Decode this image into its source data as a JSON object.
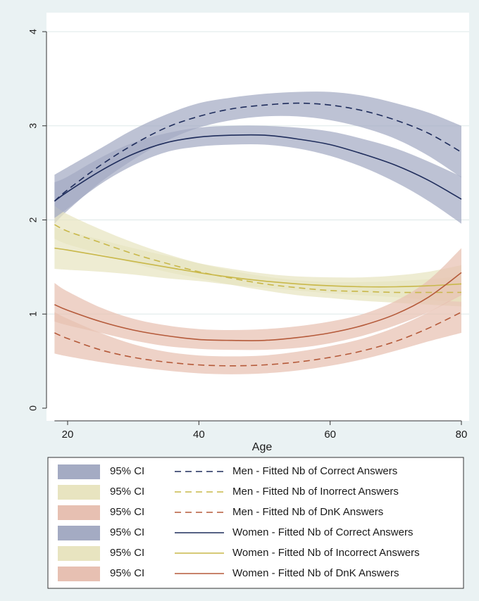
{
  "chart_data": {
    "type": "line",
    "xlabel": "Age",
    "ylabel": "",
    "xlim": [
      18,
      80
    ],
    "ylim": [
      0,
      4
    ],
    "xticks": [
      "20",
      "40",
      "60",
      "80"
    ],
    "yticks": [
      "0",
      "1",
      "2",
      "3",
      "4"
    ],
    "grid": true,
    "legend_position": "bottom",
    "x": [
      18,
      20,
      25,
      30,
      35,
      40,
      45,
      50,
      55,
      60,
      65,
      70,
      75,
      80
    ],
    "series": [
      {
        "name": "Men - Fitted Nb of Correct Answers",
        "group": "Men",
        "style": "dashed",
        "color": "#1f2d5c",
        "ci_color": "#a4abc3",
        "values": [
          2.2,
          2.32,
          2.58,
          2.8,
          2.98,
          3.1,
          3.18,
          3.22,
          3.24,
          3.22,
          3.16,
          3.06,
          2.92,
          2.72
        ],
        "ci_lower": [
          1.96,
          2.1,
          2.4,
          2.64,
          2.84,
          2.98,
          3.06,
          3.1,
          3.1,
          3.06,
          2.98,
          2.86,
          2.68,
          2.45
        ],
        "ci_upper": [
          2.48,
          2.56,
          2.76,
          2.96,
          3.12,
          3.24,
          3.3,
          3.34,
          3.36,
          3.36,
          3.32,
          3.24,
          3.14,
          3.0
        ]
      },
      {
        "name": "Men - Fitted Nb of Inorrect Answers",
        "group": "Men",
        "style": "dashed",
        "color": "#c9b84a",
        "ci_color": "#e8e4c0",
        "values": [
          1.95,
          1.88,
          1.76,
          1.64,
          1.54,
          1.45,
          1.38,
          1.32,
          1.28,
          1.25,
          1.24,
          1.23,
          1.23,
          1.23
        ],
        "ci_lower": [
          1.8,
          1.74,
          1.64,
          1.54,
          1.45,
          1.38,
          1.31,
          1.25,
          1.2,
          1.17,
          1.14,
          1.12,
          1.1,
          1.08
        ],
        "ci_upper": [
          2.15,
          2.06,
          1.9,
          1.76,
          1.64,
          1.54,
          1.46,
          1.4,
          1.36,
          1.34,
          1.34,
          1.35,
          1.37,
          1.4
        ]
      },
      {
        "name": "Men - Fitted Nb of DnK Answers",
        "group": "Men",
        "style": "dashed",
        "color": "#b55a3a",
        "ci_color": "#e7c0b2",
        "values": [
          0.8,
          0.74,
          0.62,
          0.54,
          0.49,
          0.46,
          0.45,
          0.46,
          0.49,
          0.54,
          0.61,
          0.71,
          0.85,
          1.02
        ],
        "ci_lower": [
          0.58,
          0.55,
          0.49,
          0.44,
          0.4,
          0.37,
          0.36,
          0.37,
          0.4,
          0.45,
          0.52,
          0.61,
          0.71,
          0.8
        ],
        "ci_upper": [
          1.02,
          0.95,
          0.8,
          0.68,
          0.6,
          0.56,
          0.55,
          0.56,
          0.6,
          0.66,
          0.74,
          0.86,
          1.02,
          1.22
        ]
      },
      {
        "name": "Women - Fitted Nb of Correct Answers",
        "group": "Women",
        "style": "solid",
        "color": "#1f2d5c",
        "ci_color": "#a4abc3",
        "values": [
          2.2,
          2.3,
          2.52,
          2.7,
          2.82,
          2.88,
          2.9,
          2.9,
          2.86,
          2.8,
          2.7,
          2.58,
          2.42,
          2.22
        ],
        "ci_lower": [
          2.02,
          2.12,
          2.38,
          2.58,
          2.72,
          2.78,
          2.8,
          2.8,
          2.76,
          2.68,
          2.56,
          2.4,
          2.2,
          1.96
        ],
        "ci_upper": [
          2.4,
          2.46,
          2.66,
          2.82,
          2.92,
          2.98,
          3.0,
          3.0,
          2.98,
          2.94,
          2.86,
          2.76,
          2.62,
          2.46
        ]
      },
      {
        "name": "Women - Fitted Nb of Incorrect Answers",
        "group": "Women",
        "style": "solid",
        "color": "#c9b84a",
        "ci_color": "#e8e4c0",
        "values": [
          1.7,
          1.68,
          1.62,
          1.56,
          1.5,
          1.44,
          1.39,
          1.35,
          1.32,
          1.3,
          1.29,
          1.29,
          1.3,
          1.32
        ],
        "ci_lower": [
          1.48,
          1.47,
          1.45,
          1.42,
          1.38,
          1.35,
          1.31,
          1.28,
          1.25,
          1.22,
          1.2,
          1.18,
          1.15,
          1.13
        ],
        "ci_upper": [
          1.92,
          1.88,
          1.79,
          1.7,
          1.62,
          1.54,
          1.48,
          1.43,
          1.4,
          1.39,
          1.39,
          1.41,
          1.45,
          1.52
        ]
      },
      {
        "name": "Women - Fitted Nb of DnK Answers",
        "group": "Women",
        "style": "solid",
        "color": "#b55a3a",
        "ci_color": "#e7c0b2",
        "values": [
          1.1,
          1.04,
          0.92,
          0.83,
          0.77,
          0.73,
          0.72,
          0.72,
          0.75,
          0.8,
          0.88,
          1.0,
          1.18,
          1.44
        ],
        "ci_lower": [
          0.92,
          0.88,
          0.8,
          0.72,
          0.66,
          0.63,
          0.62,
          0.62,
          0.64,
          0.69,
          0.77,
          0.88,
          1.02,
          1.2
        ],
        "ci_upper": [
          1.33,
          1.24,
          1.07,
          0.95,
          0.88,
          0.84,
          0.83,
          0.84,
          0.87,
          0.92,
          1.0,
          1.14,
          1.36,
          1.7
        ]
      }
    ],
    "legend": {
      "ci_label": "95% CI",
      "order": [
        0,
        1,
        2,
        3,
        4,
        5
      ]
    }
  }
}
